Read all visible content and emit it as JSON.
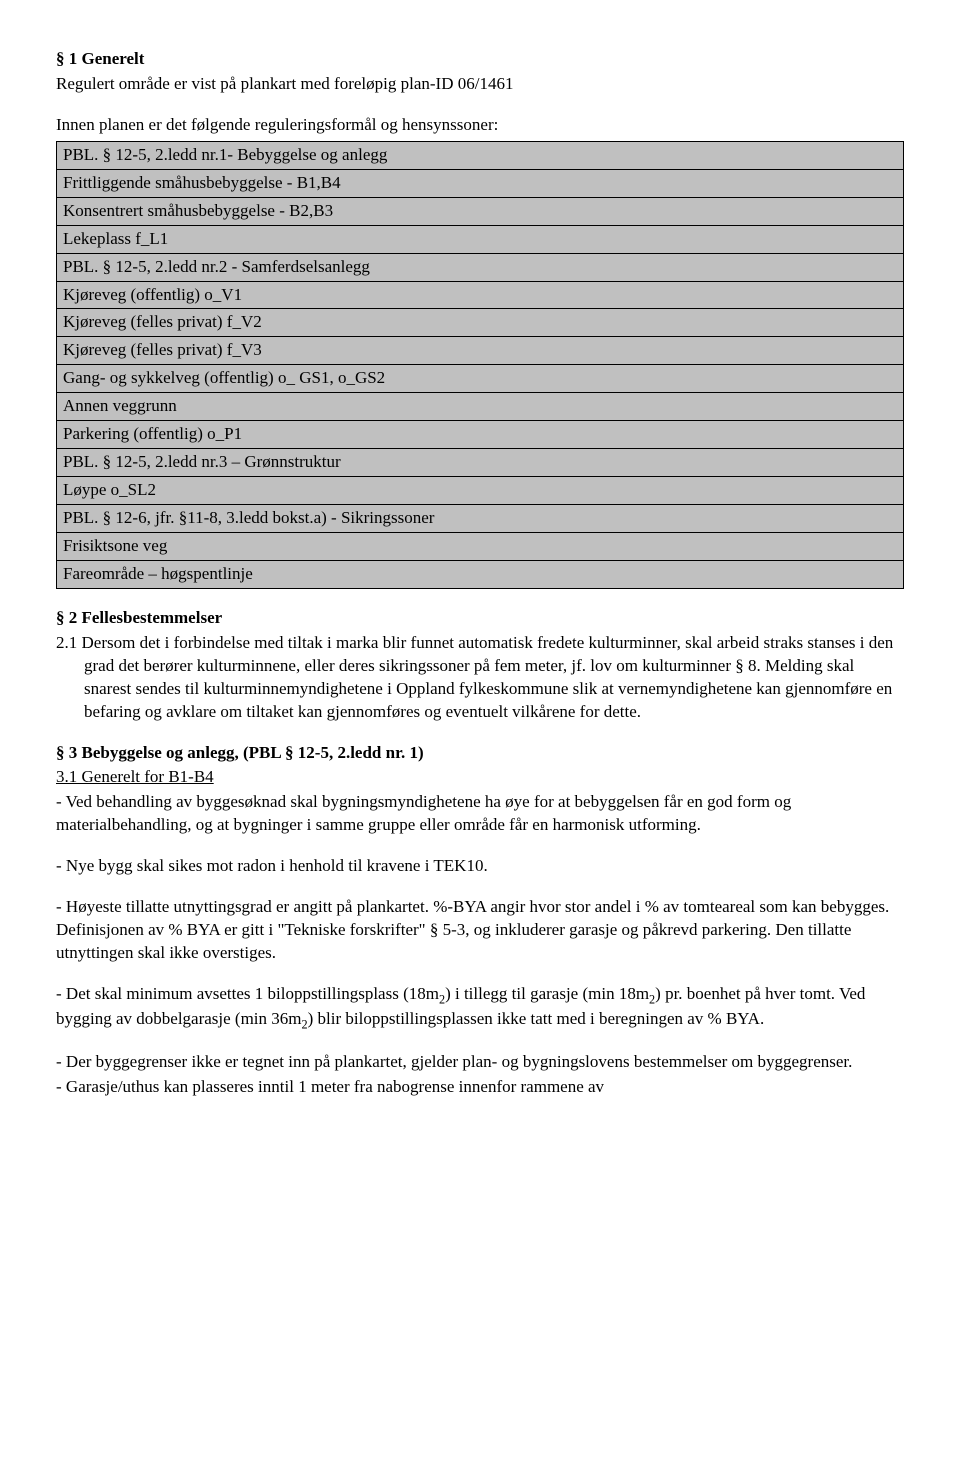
{
  "s1": {
    "heading": "§ 1 Generelt",
    "intro": "Regulert område er vist på plankart med foreløpig plan-ID 06/1461",
    "intro2": "Innen planen er det følgende reguleringsformål og hensynssoner:",
    "rows": [
      "PBL. § 12-5, 2.ledd nr.1- Bebyggelse og anlegg",
      "Frittliggende småhusbebyggelse - B1,B4",
      "Konsentrert småhusbebyggelse - B2,B3",
      "Lekeplass f_L1",
      "PBL. § 12-5, 2.ledd nr.2 - Samferdselsanlegg",
      "Kjøreveg (offentlig) o_V1",
      "Kjøreveg (felles privat) f_V2",
      "Kjøreveg (felles privat) f_V3",
      "Gang- og sykkelveg (offentlig) o_ GS1, o_GS2",
      "Annen veggrunn",
      "Parkering (offentlig) o_P1",
      "PBL. § 12-5, 2.ledd nr.3 – Grønnstruktur",
      "Løype o_SL2",
      "PBL. § 12-6, jfr. §11-8, 3.ledd bokst.a) - Sikringssoner",
      "Frisiktsone veg",
      "Fareområde – høgspentlinje"
    ]
  },
  "s2": {
    "heading": "§ 2 Fellesbestemmelser",
    "p21": "2.1 Dersom det i forbindelse med tiltak i marka blir funnet automatisk fredete kulturminner, skal arbeid straks stanses i den grad det berører kulturminnene, eller deres sikringssoner på fem meter, jf. lov om kulturminner § 8. Melding skal snarest sendes til kulturminnemyndighetene i Oppland fylkeskommune slik at vernemyndighetene kan gjennomføre en befaring og avklare om tiltaket kan gjennomføres og eventuelt vilkårene for dette."
  },
  "s3": {
    "heading": "§ 3 Bebyggelse og anlegg, (PBL § 12-5, 2.ledd nr. 1)",
    "sub1": "3.1 Generelt for B1-B4",
    "p1a": "- Ved behandling av byggesøknad skal bygningsmyndighetene ha øye for at bebyggelsen får en god form og materialbehandling, og at bygninger i samme gruppe eller område får en harmonisk utforming.",
    "p2": "- Nye bygg skal sikes mot radon i henhold til kravene i TEK10.",
    "p3": "- Høyeste tillatte utnyttingsgrad er angitt på plankartet. %-BYA angir hvor stor andel i % av tomteareal som kan bebygges. Definisjonen av % BYA er gitt i \"Tekniske forskrifter\" § 5-3, og inkluderer garasje og påkrevd parkering. Den tillatte utnyttingen skal ikke overstiges.",
    "p4_pre": "- Det skal minimum avsettes 1 biloppstillingsplass (18m",
    "p4_mid": ") i tillegg til garasje (min 18m",
    "p4_mid2": ") pr. boenhet på hver tomt. Ved bygging av dobbelgarasje (min 36m",
    "p4_post": ") blir biloppstillingsplassen ikke tatt med i beregningen av % BYA.",
    "sq": "2",
    "p5": "- Der byggegrenser ikke er tegnet inn på plankartet, gjelder plan- og bygningslovens bestemmelser om byggegrenser.",
    "p6": "- Garasje/uthus kan plasseres inntil 1 meter fra nabogrense innenfor rammene av"
  }
}
